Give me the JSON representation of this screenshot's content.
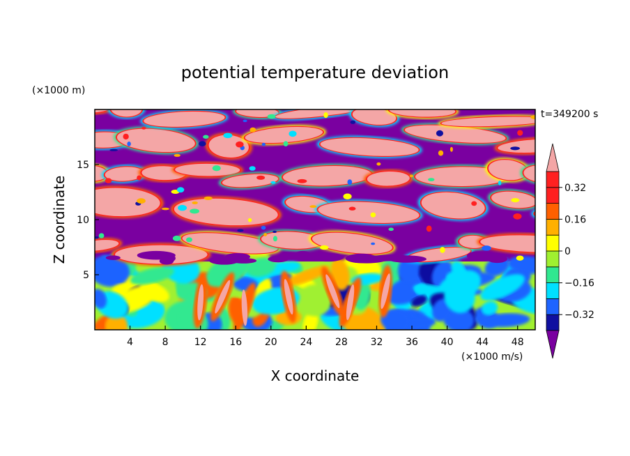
{
  "chart_data": {
    "type": "heatmap",
    "title": "potential temperature deviation",
    "time_label": "t=349200 s",
    "xlabel": "X coordinate",
    "ylabel": "Z coordinate",
    "x_unit": "(×1000 m/s)",
    "y_unit": "(×1000 m)",
    "xlim": [
      0,
      50
    ],
    "ylim": [
      0,
      20
    ],
    "x_ticks": [
      4,
      8,
      12,
      16,
      20,
      24,
      28,
      32,
      36,
      40,
      44,
      48
    ],
    "y_ticks": [
      5,
      10,
      15
    ],
    "grid": false,
    "colorbar": {
      "levels": [
        -0.4,
        -0.32,
        -0.24,
        -0.16,
        -0.08,
        0,
        0.08,
        0.16,
        0.24,
        0.32,
        0.4
      ],
      "labels": [
        "0.32",
        "0.16",
        "0",
        "−0.16",
        "−0.32"
      ],
      "label_values": [
        0.32,
        0.16,
        0,
        -0.16,
        -0.32
      ],
      "colors": [
        "#7a00a0",
        "#1010a0",
        "#1e64ff",
        "#00e0ff",
        "#30e890",
        "#a0f030",
        "#ffff00",
        "#ffb000",
        "#ff6000",
        "#ff2020",
        "#f4a6a6"
      ],
      "extend": "both"
    },
    "layers": [
      {
        "z_range": [
          0,
          6
        ],
        "description": "mixed warm/cool anomalies"
      },
      {
        "z_range": [
          6,
          20
        ],
        "description": "alternating strata of +0.4 and -0.4"
      }
    ]
  }
}
